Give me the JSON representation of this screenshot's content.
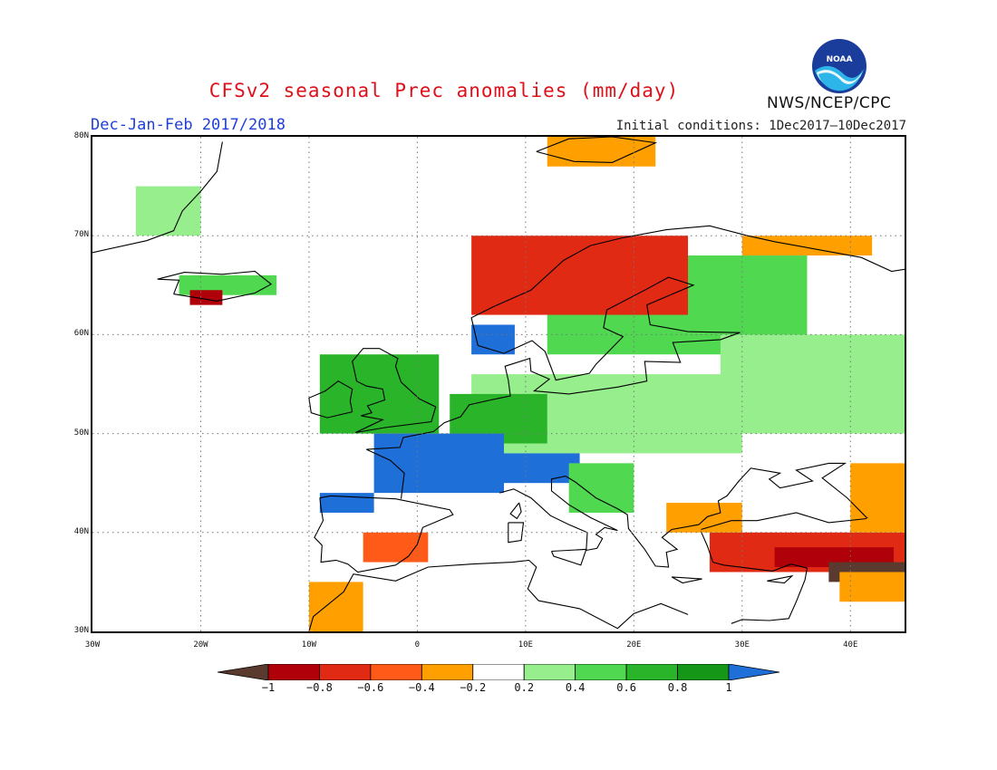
{
  "title": "CFSv2 seasonal Prec anomalies (mm/day)",
  "period": "Dec-Jan-Feb 2017/2018",
  "initial_conditions": "Initial conditions: 1Dec2017–10Dec2017",
  "agency": "NWS/NCEP/CPC",
  "logo_text": "NOAA",
  "colors": {
    "lt_-1": "#5a3a2e",
    "-1_-0.8": "#b0000a",
    "-0.8_-0.6": "#e02a14",
    "-0.6_-0.4": "#ff5a18",
    "-0.4_-0.2": "#ffa000",
    "-0.2_0.2": "#ffffff",
    "0.2_0.4": "#96ee8c",
    "0.4_0.6": "#50d850",
    "0.6_0.8": "#2ab42a",
    "0.8_1": "#169616",
    "gt_1": "#1f6fd8"
  },
  "map": {
    "lon_range": [
      -30,
      45
    ],
    "lat_range": [
      30,
      80
    ],
    "lat_ticks": [
      "30N",
      "40N",
      "50N",
      "60N",
      "70N",
      "80N"
    ],
    "lon_ticks": [
      "30W",
      "20W",
      "10W",
      "0",
      "10E",
      "20E",
      "30E",
      "40E"
    ],
    "grid": true,
    "regions": [
      {
        "name": "Scandinavia & NW Russia",
        "lon": [
          12,
          36
        ],
        "lat": [
          58,
          68
        ],
        "cls": "0.4_0.6"
      },
      {
        "name": "Russia",
        "lon": [
          28,
          45
        ],
        "lat": [
          50,
          60
        ],
        "cls": "0.2_0.4"
      },
      {
        "name": "Central Europe",
        "lon": [
          5,
          30
        ],
        "lat": [
          48,
          56
        ],
        "cls": "0.2_0.4"
      },
      {
        "name": "Germany Benelux",
        "lon": [
          3,
          12
        ],
        "lat": [
          49,
          54
        ],
        "cls": "0.6_0.8"
      },
      {
        "name": "British Isles",
        "lon": [
          -9,
          2
        ],
        "lat": [
          50,
          58
        ],
        "cls": "0.6_0.8"
      },
      {
        "name": "France",
        "lon": [
          -4,
          8
        ],
        "lat": [
          44,
          50
        ],
        "cls": "gt_1"
      },
      {
        "name": "N Iberia",
        "lon": [
          -9,
          -4
        ],
        "lat": [
          42,
          44
        ],
        "cls": "gt_1"
      },
      {
        "name": "Alps",
        "lon": [
          6,
          15
        ],
        "lat": [
          45,
          48
        ],
        "cls": "gt_1"
      },
      {
        "name": "Balkans N",
        "lon": [
          14,
          20
        ],
        "lat": [
          42,
          47
        ],
        "cls": "0.4_0.6"
      },
      {
        "name": "Norway coast",
        "lon": [
          5,
          25
        ],
        "lat": [
          62,
          70
        ],
        "cls": "-0.8_-0.6"
      },
      {
        "name": "SW Norway",
        "lon": [
          5,
          9
        ],
        "lat": [
          58,
          61
        ],
        "cls": "gt_1"
      },
      {
        "name": "Turkey",
        "lon": [
          27,
          45
        ],
        "lat": [
          36,
          40
        ],
        "cls": "-0.8_-0.6"
      },
      {
        "name": "Turkey core",
        "lon": [
          33,
          44
        ],
        "lat": [
          36.5,
          38.5
        ],
        "cls": "-1_-0.8"
      },
      {
        "name": "E Turkey",
        "lon": [
          38,
          45
        ],
        "lat": [
          35,
          37
        ],
        "cls": "lt_-1"
      },
      {
        "name": "Black Sea S",
        "lon": [
          23,
          30
        ],
        "lat": [
          40,
          43
        ],
        "cls": "-0.4_-0.2"
      },
      {
        "name": "Levant",
        "lon": [
          39,
          45
        ],
        "lat": [
          33,
          36
        ],
        "cls": "-0.4_-0.2"
      },
      {
        "name": "Caucasus",
        "lon": [
          40,
          45
        ],
        "lat": [
          40,
          47
        ],
        "cls": "-0.4_-0.2"
      },
      {
        "name": "SE Spain",
        "lon": [
          -5,
          1
        ],
        "lat": [
          37,
          40
        ],
        "cls": "-0.6_-0.4"
      },
      {
        "name": "Morocco",
        "lon": [
          -10,
          -5
        ],
        "lat": [
          30,
          35
        ],
        "cls": "-0.4_-0.2"
      },
      {
        "name": "Iceland",
        "lon": [
          -22,
          -13
        ],
        "lat": [
          64,
          66
        ],
        "cls": "0.4_0.6"
      },
      {
        "name": "Iceland S",
        "lon": [
          -21,
          -18
        ],
        "lat": [
          63,
          64.5
        ],
        "cls": "-1_-0.8"
      },
      {
        "name": "Svalbard",
        "lon": [
          12,
          22
        ],
        "lat": [
          77,
          80
        ],
        "cls": "-0.4_-0.2"
      },
      {
        "name": "Barents coast",
        "lon": [
          30,
          42
        ],
        "lat": [
          68,
          70
        ],
        "cls": "-0.4_-0.2"
      },
      {
        "name": "Greenland E",
        "lon": [
          -26,
          -20
        ],
        "lat": [
          70,
          75
        ],
        "cls": "0.2_0.4"
      }
    ]
  },
  "colorbar": {
    "labels": [
      "-1",
      "-0.8",
      "-0.6",
      "-0.4",
      "-0.2",
      "0.2",
      "0.4",
      "0.6",
      "0.8",
      "1"
    ],
    "classes": [
      "lt_-1",
      "-1_-0.8",
      "-0.8_-0.6",
      "-0.6_-0.4",
      "-0.4_-0.2",
      "-0.2_0.2",
      "0.2_0.4",
      "0.4_0.6",
      "0.6_0.8",
      "0.8_1",
      "gt_1"
    ]
  }
}
